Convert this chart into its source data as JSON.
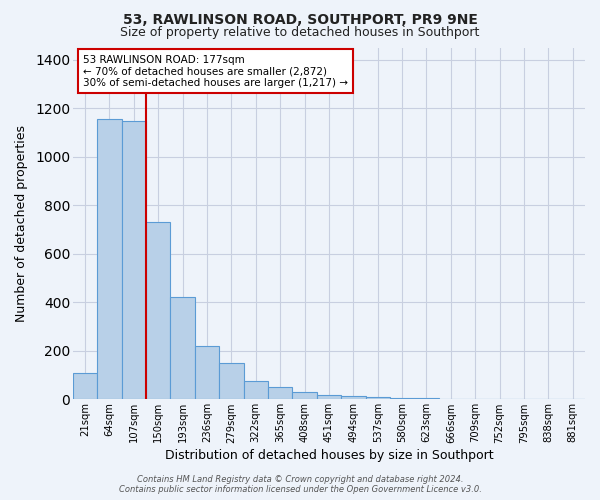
{
  "title": "53, RAWLINSON ROAD, SOUTHPORT, PR9 9NE",
  "subtitle": "Size of property relative to detached houses in Southport",
  "xlabel": "Distribution of detached houses by size in Southport",
  "ylabel": "Number of detached properties",
  "categories": [
    "21sqm",
    "64sqm",
    "107sqm",
    "150sqm",
    "193sqm",
    "236sqm",
    "279sqm",
    "322sqm",
    "365sqm",
    "408sqm",
    "451sqm",
    "494sqm",
    "537sqm",
    "580sqm",
    "623sqm",
    "666sqm",
    "709sqm",
    "752sqm",
    "795sqm",
    "838sqm",
    "881sqm"
  ],
  "values": [
    110,
    1155,
    1148,
    730,
    420,
    220,
    150,
    75,
    50,
    30,
    20,
    15,
    10,
    5,
    5,
    2,
    2,
    2,
    0,
    2,
    2
  ],
  "bar_color": "#b8d0e8",
  "bar_edge_color": "#5b9bd5",
  "vline_color": "#cc0000",
  "vline_x": 2.5,
  "annotation_text": "53 RAWLINSON ROAD: 177sqm\n← 70% of detached houses are smaller (2,872)\n30% of semi-detached houses are larger (1,217) →",
  "annotation_box_color": "#ffffff",
  "annotation_box_edge_color": "#cc0000",
  "ylim": [
    0,
    1450
  ],
  "yticks": [
    0,
    200,
    400,
    600,
    800,
    1000,
    1200,
    1400
  ],
  "footer_line1": "Contains HM Land Registry data © Crown copyright and database right 2024.",
  "footer_line2": "Contains public sector information licensed under the Open Government Licence v3.0.",
  "bg_color": "#eef3fa",
  "plot_bg_color": "#eef3fa",
  "grid_color": "#c8cfe0",
  "title_fontsize": 10,
  "subtitle_fontsize": 9
}
